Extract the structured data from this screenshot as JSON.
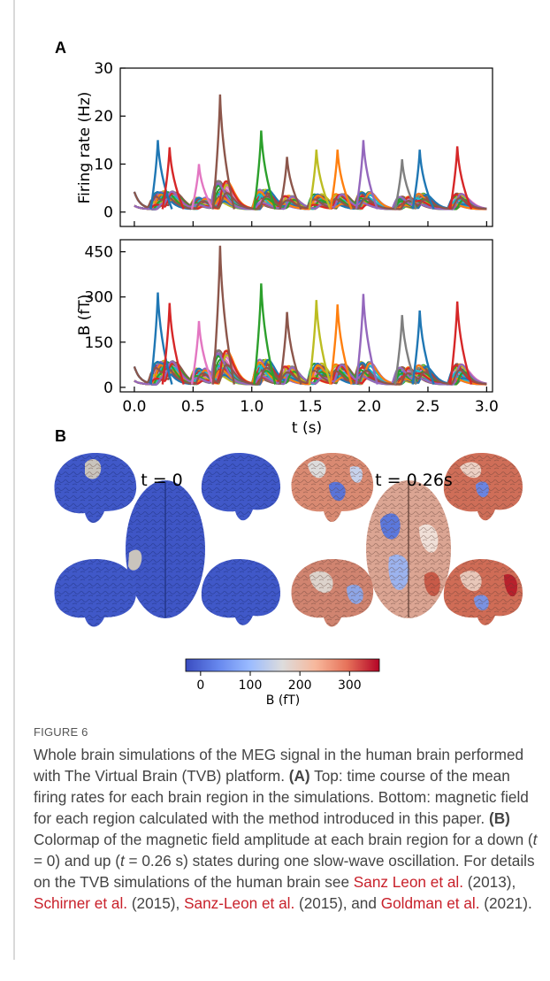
{
  "figure": {
    "panel_a_label": "A",
    "panel_b_label": "B",
    "panel_b": {
      "left_time_label": "t = 0",
      "right_time_label": "t = 0.26s",
      "colorbar": {
        "label": "B (fT)",
        "ticks": [
          "0",
          "100",
          "200",
          "300"
        ],
        "range": [
          -30,
          360
        ],
        "colors": [
          "#3a4cc0",
          "#7b9ff9",
          "#c0d4f5",
          "#dddcdc",
          "#f2cbb7",
          "#ee8468",
          "#b40426"
        ]
      }
    }
  },
  "chart_data": [
    {
      "type": "line",
      "ylabel": "Firing rate (Hz)",
      "xlabel": "",
      "xlim": [
        -0.12,
        3.05
      ],
      "ylim": [
        -3,
        30
      ],
      "yticks": [
        "0",
        "10",
        "20",
        "30"
      ],
      "xticks": [],
      "peak_times": [
        0.2,
        0.3,
        0.55,
        0.73,
        1.08,
        1.3,
        1.55,
        1.73,
        1.95,
        2.28,
        2.43,
        2.75
      ],
      "peak_values": [
        15,
        13.5,
        10,
        24.5,
        17,
        11.5,
        13,
        13,
        15,
        11,
        13,
        13.7
      ]
    },
    {
      "type": "line",
      "ylabel": "B (fT)",
      "xlabel": "t (s)",
      "xlim": [
        -0.12,
        3.05
      ],
      "ylim": [
        -15,
        490
      ],
      "yticks": [
        "0",
        "150",
        "300",
        "450"
      ],
      "xticks": [
        "0.0",
        "0.5",
        "1.0",
        "1.5",
        "2.0",
        "2.5",
        "3.0"
      ],
      "peak_times": [
        0.2,
        0.3,
        0.55,
        0.73,
        1.08,
        1.3,
        1.55,
        1.73,
        1.95,
        2.28,
        2.43,
        2.75
      ],
      "peak_values": [
        315,
        280,
        220,
        470,
        345,
        250,
        290,
        275,
        310,
        240,
        255,
        285
      ]
    }
  ],
  "caption": {
    "figure_label": "FIGURE 6",
    "p1": "Whole brain simulations of the MEG signal in the human brain performed with The Virtual Brain (TVB) platform. ",
    "a_label": "(A)",
    "p2": " Top: time course of the mean firing rates for each brain region in the simulations. Bottom: magnetic field for each region calculated with the method introduced in this paper. ",
    "b_label": "(B)",
    "p3": " Colormap of the magnetic field amplitude at each brain region for a down (",
    "t_var": "t",
    "eq0": " = 0) and up (",
    "t_var2": "t",
    "eq1": " = 0.26 s) states during one slow-wave oscillation. For details on the TVB simulations of the human brain see ",
    "ref1": "Sanz Leon et al.",
    "yr1": " (2013), ",
    "ref2": "Schirner et al.",
    "yr2": " (2015), ",
    "ref3": "Sanz-Leon et al.",
    "yr3": " (2015), and ",
    "ref4": "Goldman et al.",
    "yr4": " (2021)."
  }
}
